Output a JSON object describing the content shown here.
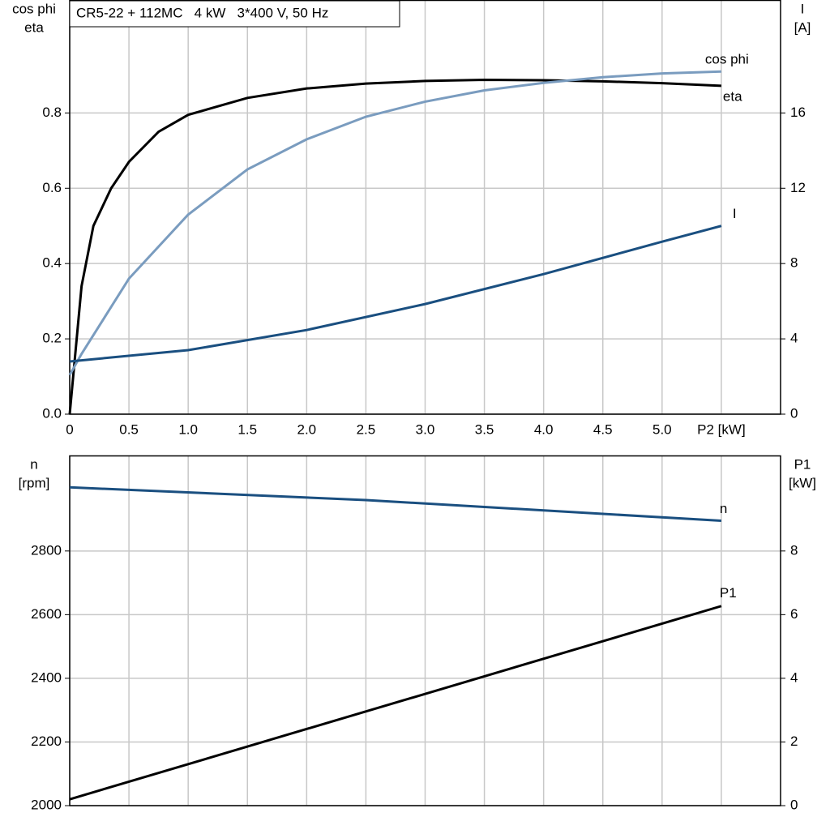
{
  "chart_data": [
    {
      "type": "line",
      "title": "CR5-22 + 112MC   4 kW   3*400 V, 50 Hz",
      "ylabel": [
        "cos phi",
        "eta"
      ],
      "y2label": [
        "I",
        "[A]"
      ],
      "xlim": [
        0,
        6
      ],
      "xticks": [
        {
          "value": 0,
          "label": "0"
        },
        0.5,
        {
          "value": 1,
          "label": "1.0"
        },
        1.5,
        {
          "value": 2,
          "label": "2.0"
        },
        2.5,
        {
          "value": 3,
          "label": "3.0"
        },
        3.5,
        {
          "value": 4,
          "label": "4.0"
        },
        4.5,
        {
          "value": 5,
          "label": "5.0"
        },
        {
          "value": 5.5,
          "label": "P2 [kW]"
        }
      ],
      "ylim": [
        0,
        1.1
      ],
      "yticks": [
        {
          "value": 0,
          "label": "0.0"
        },
        0.2,
        0.4,
        0.6,
        0.8
      ],
      "y2lim": [
        0,
        22
      ],
      "y2ticks": [
        0,
        4,
        8,
        12,
        16
      ],
      "grid": true,
      "series": [
        {
          "name": "eta",
          "color": "#000000",
          "axis": "y",
          "x": [
            0,
            0.1,
            0.2,
            0.35,
            0.5,
            0.75,
            1,
            1.5,
            2,
            2.5,
            3,
            3.5,
            4,
            4.5,
            5,
            5.5
          ],
          "values": [
            0,
            0.34,
            0.5,
            0.6,
            0.67,
            0.75,
            0.795,
            0.84,
            0.865,
            0.878,
            0.885,
            0.888,
            0.887,
            0.884,
            0.879,
            0.872
          ]
        },
        {
          "name": "cos phi",
          "color": "#7a9cbf",
          "axis": "y",
          "x": [
            0,
            0.1,
            0.5,
            1,
            1.5,
            2,
            2.5,
            3,
            3.5,
            4,
            4.5,
            5,
            5.5
          ],
          "values": [
            0.104,
            0.16,
            0.36,
            0.53,
            0.65,
            0.73,
            0.79,
            0.83,
            0.86,
            0.88,
            0.895,
            0.905,
            0.91
          ]
        },
        {
          "name": "I",
          "color": "#1a4f80",
          "axis": "y2",
          "x": [
            0,
            1,
            2,
            3,
            4,
            5,
            5.5
          ],
          "values": [
            2.8,
            3.4,
            4.47,
            5.85,
            7.44,
            9.16,
            10
          ]
        }
      ]
    },
    {
      "type": "line",
      "ylabel": [
        "n",
        "[rpm]"
      ],
      "y2label": [
        "P1",
        "[kW]"
      ],
      "xlim": [
        0,
        6
      ],
      "ylim": [
        2000,
        3100
      ],
      "yticks": [
        2000,
        2200,
        2400,
        2600,
        2800
      ],
      "y2lim": [
        0,
        11
      ],
      "y2ticks": [
        0,
        2,
        4,
        6,
        8
      ],
      "grid": true,
      "series": [
        {
          "name": "n",
          "color": "#1a4f80",
          "axis": "y",
          "x": [
            0,
            2.5,
            5.5
          ],
          "values": [
            3000,
            2960,
            2895
          ]
        },
        {
          "name": "P1",
          "color": "#000000",
          "axis": "y2",
          "x": [
            0,
            5.5
          ],
          "values": [
            0.2,
            6.27
          ]
        }
      ]
    }
  ]
}
